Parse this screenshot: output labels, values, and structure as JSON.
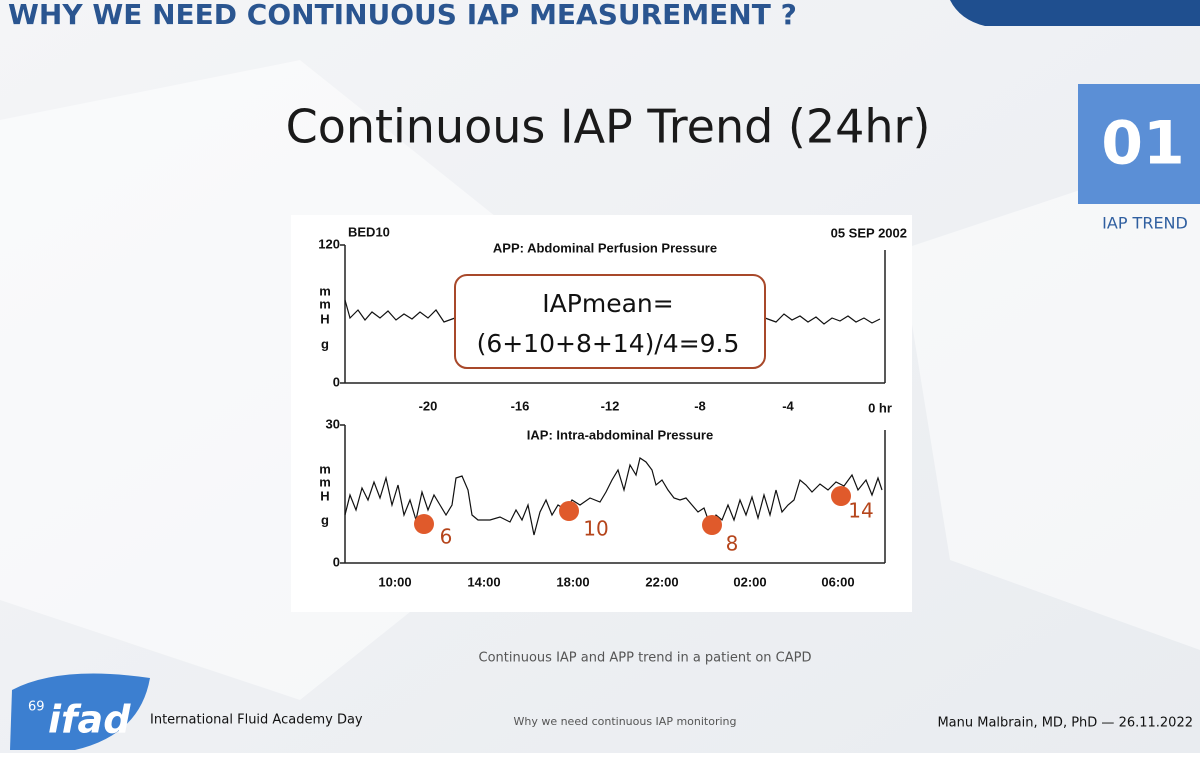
{
  "slide": {
    "section_title": "WHY WE NEED CONTINUOUS IAP MEASUREMENT ?",
    "heading": "Continuous IAP Trend (24hr)",
    "badge": {
      "number": "01",
      "label": "IAP TREND"
    },
    "figure": {
      "bed": "BED10",
      "date": "05 SEP 2002",
      "top_panel": {
        "title": "APP: Abdominal Perfusion Pressure",
        "y_top": 120,
        "y_bottom": 0,
        "unit_letters": [
          "m",
          "m",
          "H",
          "g"
        ],
        "x_ticks": [
          -20,
          -16,
          -12,
          -8,
          -4,
          "0 hr"
        ]
      },
      "bottom_panel": {
        "title": "IAP: Intra-abdominal Pressure",
        "y_top": 30,
        "y_bottom": 0,
        "unit_letters": [
          "m",
          "m",
          "H",
          "g"
        ],
        "x_ticks": [
          "10:00",
          "14:00",
          "18:00",
          "22:00",
          "02:00",
          "06:00"
        ]
      },
      "annotation": {
        "line1": "IAPmean=",
        "line2": "(6+10+8+14)/4=9.5"
      },
      "points": [
        6,
        10,
        8,
        14
      ]
    },
    "caption": "Continuous IAP and APP trend in a patient on CAPD",
    "footer": {
      "logo_number": "69",
      "logo_text": "ifad",
      "event": "International Fluid Academy Day",
      "topic": "Why we need continuous IAP monitoring",
      "author": "Manu Malbrain, MD, PhD — 26.11.2022"
    }
  }
}
